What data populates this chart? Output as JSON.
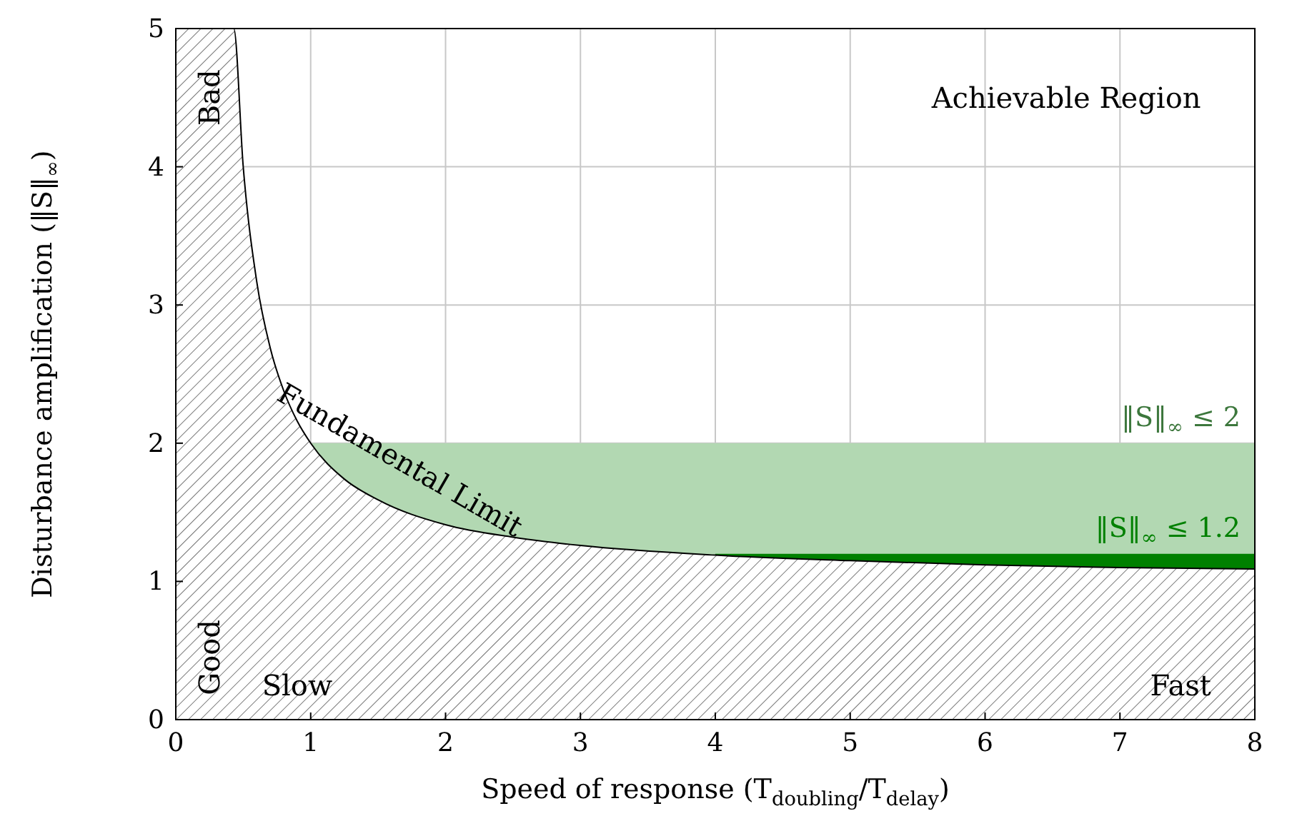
{
  "chart_data": {
    "type": "area",
    "xlabel": "Speed of response (T$_{doubling}$/T$_{delay}$)",
    "ylabel": "Disturbance amplification (‖S‖$_{∞}$)",
    "xlim": [
      0,
      8
    ],
    "ylim": [
      0,
      5
    ],
    "xticks": [
      0,
      1,
      2,
      3,
      4,
      5,
      6,
      7,
      8
    ],
    "yticks": [
      0,
      1,
      2,
      3,
      4,
      5
    ],
    "grid": true,
    "legend": false,
    "series": [
      {
        "name": "‖S‖$_{∞}$ ≤ 2",
        "color": "#b2d8b2",
        "x": [
          1,
          8
        ],
        "values": [
          2,
          2
        ]
      },
      {
        "name": "‖S‖$_{∞}$ ≤ 1.2",
        "color": "#008000",
        "x": [
          4,
          8
        ],
        "values": [
          1.2,
          1.2
        ]
      },
      {
        "color": "#555555",
        "x": [
          0,
          0.43,
          0.5,
          0.6,
          0.7,
          0.8,
          0.9,
          1,
          1.25,
          1.5,
          2,
          2.5,
          3,
          4,
          5,
          6,
          7,
          8
        ],
        "values": [
          5,
          5,
          4,
          3.17,
          2.69,
          2.38,
          2.16,
          2,
          1.74,
          1.59,
          1.41,
          1.32,
          1.26,
          1.19,
          1.15,
          1.12,
          1.1,
          1.09
        ]
      }
    ],
    "annotations": [
      "Achievable Region",
      "Bad",
      "Good",
      "Slow",
      "Fast",
      {
        "text": "Fundamental Limit",
        "x": 1.5,
        "y": 1.59
      }
    ]
  }
}
